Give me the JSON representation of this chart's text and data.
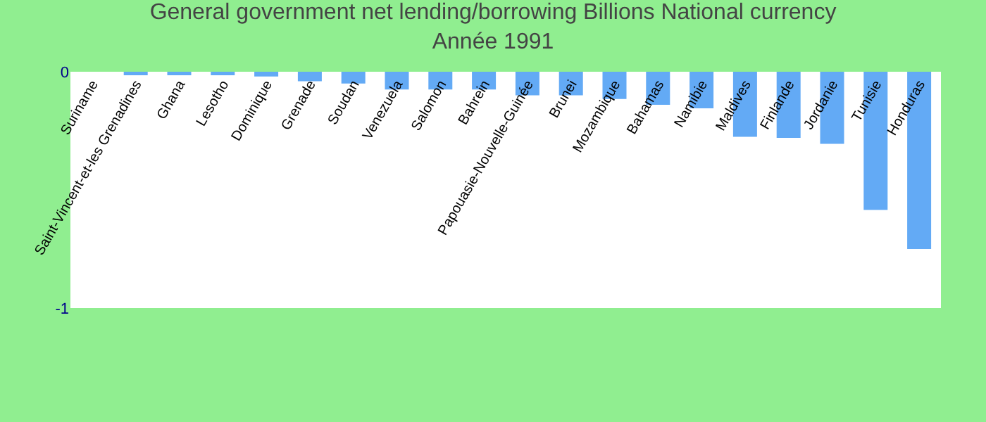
{
  "chart_data": {
    "type": "bar",
    "title": "General government net lending/borrowing Billions National currency",
    "subtitle": "Année 1991",
    "categories": [
      "Suriname",
      "Saint-Vincent-et-les Grenadines",
      "Ghana",
      "Lesotho",
      "Dominique",
      "Grenade",
      "Soudan",
      "Venezuela",
      "Salomon",
      "Bahrein",
      "Papouasie-Nouvelle-Guinée",
      "Brunei",
      "Mozambique",
      "Bahamas",
      "Namibie",
      "Maldives",
      "Finlande",
      "Jordanie",
      "Tunisie",
      "Honduras"
    ],
    "values": [
      0,
      -0.015,
      -0.015,
      -0.015,
      -0.02,
      -0.04,
      -0.05,
      -0.075,
      -0.075,
      -0.075,
      -0.1,
      -0.1,
      -0.115,
      -0.14,
      -0.155,
      -0.275,
      -0.28,
      -0.305,
      -0.585,
      -0.75
    ],
    "color": "#63aaf5",
    "ylim": [
      -1,
      0
    ],
    "yticks": [
      -1,
      0
    ]
  }
}
